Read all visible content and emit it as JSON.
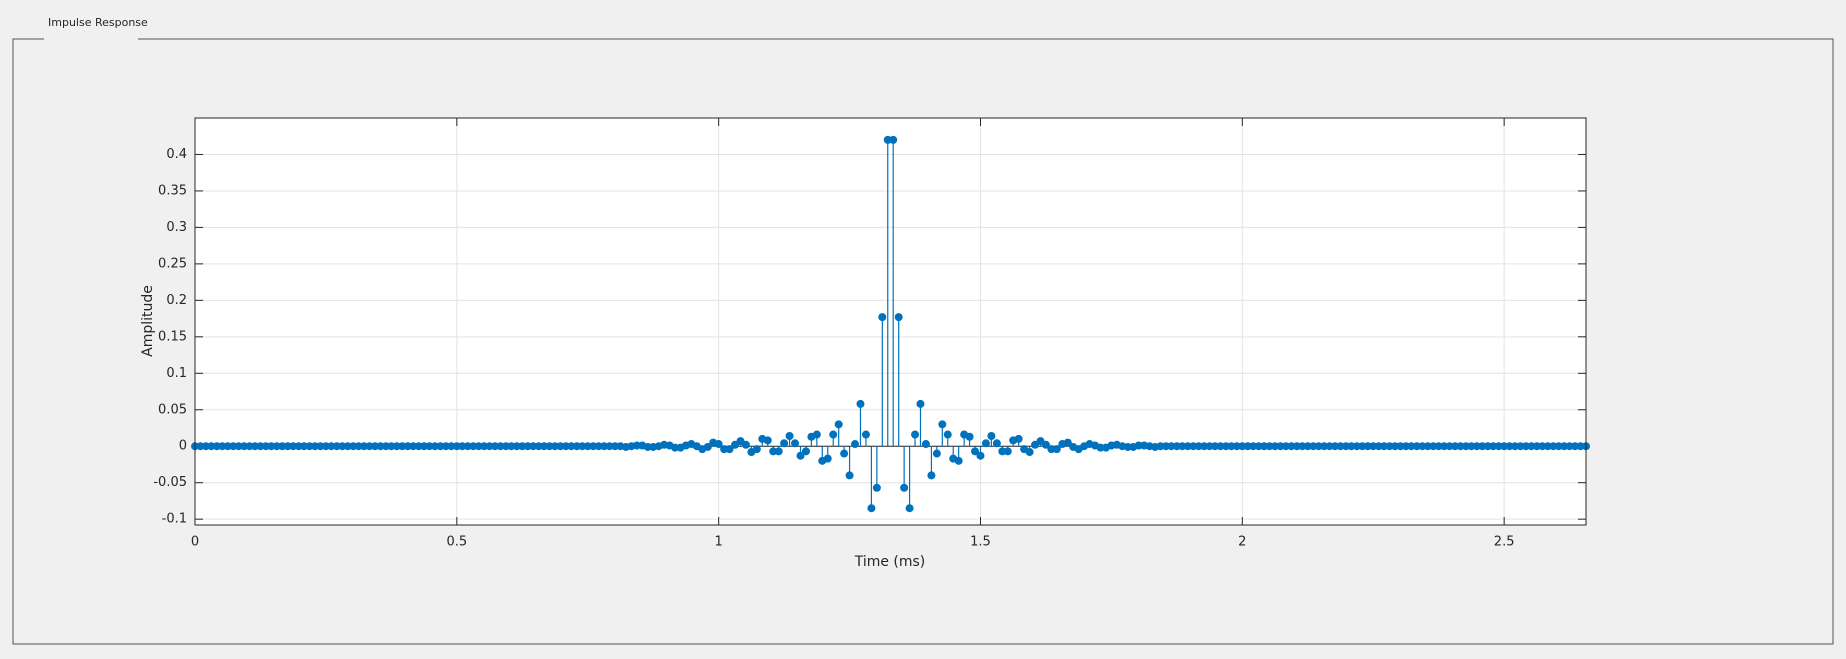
{
  "panel_title": "Impulse Response",
  "chart_data": {
    "type": "stem",
    "xlabel": "Time (ms)",
    "ylabel": "Amplitude",
    "color": "#0072bd",
    "grid": true,
    "xlim": [
      0,
      2.6563
    ],
    "ylim": [
      -0.108,
      0.45
    ],
    "xticks": [
      0,
      0.5,
      1,
      1.5,
      2,
      2.5
    ],
    "yticks": [
      -0.1,
      -0.05,
      0,
      0.05,
      0.1,
      0.15,
      0.2,
      0.25,
      0.3,
      0.35,
      0.4
    ],
    "x": [
      0,
      0.0104,
      0.0208,
      0.0313,
      0.0417,
      0.0521,
      0.0625,
      0.0729,
      0.0833,
      0.0938,
      0.1042,
      0.1146,
      0.125,
      0.1354,
      0.1458,
      0.1563,
      0.1667,
      0.1771,
      0.1875,
      0.1979,
      0.2083,
      0.2188,
      0.2292,
      0.2396,
      0.25,
      0.2604,
      0.2708,
      0.2813,
      0.2917,
      0.3021,
      0.3125,
      0.3229,
      0.3333,
      0.3438,
      0.3542,
      0.3646,
      0.375,
      0.3854,
      0.3958,
      0.4063,
      0.4167,
      0.4271,
      0.4375,
      0.4479,
      0.4583,
      0.4688,
      0.4792,
      0.4896,
      0.5,
      0.5104,
      0.5208,
      0.5313,
      0.5417,
      0.5521,
      0.5625,
      0.5729,
      0.5833,
      0.5938,
      0.6042,
      0.6146,
      0.625,
      0.6354,
      0.6458,
      0.6563,
      0.6667,
      0.6771,
      0.6875,
      0.6979,
      0.7083,
      0.7188,
      0.7292,
      0.7396,
      0.75,
      0.7604,
      0.7708,
      0.7813,
      0.7917,
      0.8021,
      0.8125,
      0.8229,
      0.8333,
      0.8438,
      0.8542,
      0.8646,
      0.875,
      0.8854,
      0.8958,
      0.9063,
      0.9167,
      0.9271,
      0.9375,
      0.9479,
      0.9583,
      0.9688,
      0.9792,
      0.9896,
      1,
      1.0104,
      1.0208,
      1.0313,
      1.0417,
      1.0521,
      1.0625,
      1.0729,
      1.0833,
      1.0938,
      1.1042,
      1.1146,
      1.125,
      1.1354,
      1.1458,
      1.1563,
      1.1667,
      1.1771,
      1.1875,
      1.1979,
      1.2083,
      1.2188,
      1.2292,
      1.2396,
      1.25,
      1.2604,
      1.2708,
      1.2813,
      1.2917,
      1.3021,
      1.3125,
      1.3229,
      1.3333,
      1.3438,
      1.3542,
      1.3646,
      1.375,
      1.3854,
      1.3958,
      1.4063,
      1.4167,
      1.4271,
      1.4375,
      1.4479,
      1.4583,
      1.4688,
      1.4792,
      1.4896,
      1.5,
      1.5104,
      1.5208,
      1.5313,
      1.5417,
      1.5521,
      1.5625,
      1.5729,
      1.5833,
      1.5938,
      1.6042,
      1.6146,
      1.625,
      1.6354,
      1.6458,
      1.6563,
      1.6667,
      1.6771,
      1.6875,
      1.6979,
      1.7083,
      1.7188,
      1.7292,
      1.7396,
      1.75,
      1.7604,
      1.7708,
      1.7813,
      1.7917,
      1.8021,
      1.8125,
      1.8229,
      1.8333,
      1.8438,
      1.8542,
      1.8646,
      1.875,
      1.8854,
      1.8958,
      1.9063,
      1.9167,
      1.9271,
      1.9375,
      1.9479,
      1.9583,
      1.9688,
      1.9792,
      1.9896,
      2,
      2.0104,
      2.0208,
      2.0313,
      2.0417,
      2.0521,
      2.0625,
      2.0729,
      2.0833,
      2.0938,
      2.1042,
      2.1146,
      2.125,
      2.1354,
      2.1458,
      2.1563,
      2.1667,
      2.1771,
      2.1875,
      2.1979,
      2.2083,
      2.2188,
      2.2292,
      2.2396,
      2.25,
      2.2604,
      2.2708,
      2.2813,
      2.2917,
      2.3021,
      2.3125,
      2.3229,
      2.3333,
      2.3438,
      2.3542,
      2.3646,
      2.375,
      2.3854,
      2.3958,
      2.4063,
      2.4167,
      2.4271,
      2.4375,
      2.4479,
      2.4583,
      2.4688,
      2.4792,
      2.4896,
      2.5,
      2.5104,
      2.5208,
      2.5313,
      2.5417,
      2.5521,
      2.5625,
      2.5729,
      2.5833,
      2.5938,
      2.6042,
      2.6146,
      2.625,
      2.6354,
      2.6458,
      2.6563
    ],
    "values": [
      0,
      0,
      0,
      0,
      0,
      0,
      0,
      0,
      0,
      0,
      0,
      0,
      0,
      0,
      0,
      0,
      0,
      0,
      0,
      0,
      0,
      0,
      0,
      0,
      0,
      0,
      0,
      0,
      0,
      0,
      0,
      0,
      0,
      0,
      0,
      0,
      0,
      0,
      0,
      0,
      0,
      0,
      0,
      0,
      0,
      0,
      0,
      0,
      0,
      0,
      0,
      0,
      0,
      0,
      0,
      0,
      0,
      0,
      0,
      0,
      0,
      0,
      0,
      0,
      0,
      0,
      0,
      0,
      0,
      0,
      0,
      0,
      0,
      0,
      0,
      0,
      0,
      0,
      0,
      -0.001,
      0,
      0.001,
      0.001,
      -0.001,
      -0.001,
      0,
      0.002,
      0.001,
      -0.002,
      -0.002,
      0.001,
      0.003,
      0,
      -0.004,
      -0.001,
      0.005,
      0.003,
      -0.004,
      -0.004,
      0.002,
      0.007,
      0.002,
      -0.008,
      -0.004,
      0.01,
      0.008,
      -0.007,
      -0.007,
      0.004,
      0.014,
      0.004,
      -0.013,
      -0.007,
      0.013,
      0.016,
      -0.02,
      -0.017,
      0.016,
      0.03,
      -0.01,
      -0.04,
      0.003,
      0.058,
      0.016,
      -0.085,
      -0.057,
      0.177,
      0.42,
      0.42,
      0.177,
      -0.057,
      -0.085,
      0.016,
      0.058,
      0.003,
      -0.04,
      -0.01,
      0.03,
      0.016,
      -0.017,
      -0.02,
      0.016,
      0.013,
      -0.007,
      -0.013,
      0.004,
      0.014,
      0.004,
      -0.007,
      -0.007,
      0.008,
      0.01,
      -0.004,
      -0.008,
      0.002,
      0.007,
      0.002,
      -0.004,
      -0.004,
      0.003,
      0.005,
      -0.001,
      -0.004,
      0,
      0.003,
      0.001,
      -0.002,
      -0.002,
      0.001,
      0.002,
      0,
      -0.001,
      -0.001,
      0.001,
      0.001,
      0,
      -0.001,
      0,
      0,
      0,
      0,
      0,
      0,
      0,
      0,
      0,
      0,
      0,
      0,
      0,
      0,
      0,
      0,
      0,
      0,
      0,
      0,
      0,
      0,
      0,
      0,
      0,
      0,
      0,
      0,
      0,
      0,
      0,
      0,
      0,
      0,
      0,
      0,
      0,
      0,
      0,
      0,
      0,
      0,
      0,
      0,
      0,
      0,
      0,
      0,
      0,
      0,
      0,
      0,
      0,
      0,
      0,
      0,
      0,
      0,
      0,
      0,
      0,
      0,
      0,
      0,
      0,
      0,
      0,
      0,
      0,
      0,
      0,
      0,
      0,
      0,
      0,
      0,
      0,
      0,
      0
    ]
  }
}
